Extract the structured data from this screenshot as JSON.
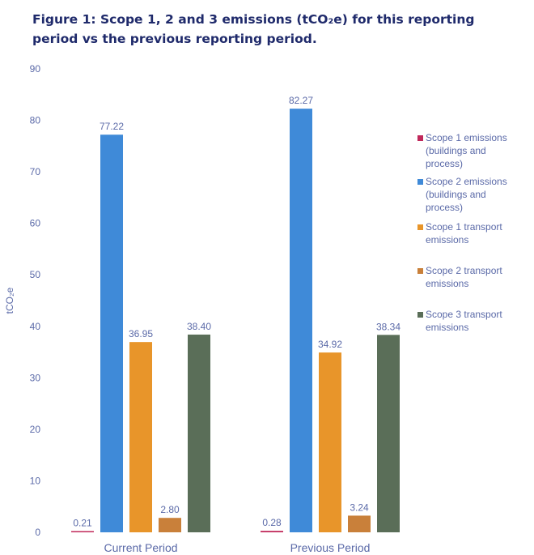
{
  "title": "Figure 1: Scope 1, 2 and 3  emissions (tCO₂e) for this reporting period vs the previous reporting period.",
  "chart_data": {
    "type": "bar",
    "categories": [
      "Current Period",
      "Previous Period"
    ],
    "ylabel": "tCO₂e",
    "ylim": [
      0,
      90
    ],
    "yticks": [
      0,
      10,
      20,
      30,
      40,
      50,
      60,
      70,
      80,
      90
    ],
    "grid": false,
    "legend_position": "right",
    "series": [
      {
        "name": "Scope 1 emissions (buildings and process)",
        "legend_lines": [
          "Scope 1 emissions",
          "(buildings and",
          "process)"
        ],
        "color": "#c0285a",
        "values": [
          0.21,
          0.28
        ],
        "labels": [
          "0.21",
          "0.28"
        ]
      },
      {
        "name": "Scope 2 emissions (buildings and process)",
        "legend_lines": [
          "Scope 2 emissions",
          "(buildings and",
          "process)"
        ],
        "color": "#3f8ad8",
        "values": [
          77.22,
          82.27
        ],
        "labels": [
          "77.22",
          "82.27"
        ]
      },
      {
        "name": "Scope 1 transport emissions",
        "legend_lines": [
          "Scope 1 transport",
          "emissions"
        ],
        "color": "#e8952a",
        "values": [
          36.95,
          34.92
        ],
        "labels": [
          "36.95",
          "34.92"
        ]
      },
      {
        "name": "Scope 2 transport emissions",
        "legend_lines": [
          "Scope 2 transport",
          "emissions"
        ],
        "color": "#c9803a",
        "values": [
          2.8,
          3.24
        ],
        "labels": [
          "2.80",
          "3.24"
        ]
      },
      {
        "name": "Scope 3 transport emissions",
        "legend_lines": [
          "Scope 3 transport",
          "emissions"
        ],
        "color": "#5a6e58",
        "values": [
          38.4,
          38.34
        ],
        "labels": [
          "38.40",
          "38.34"
        ]
      }
    ]
  }
}
